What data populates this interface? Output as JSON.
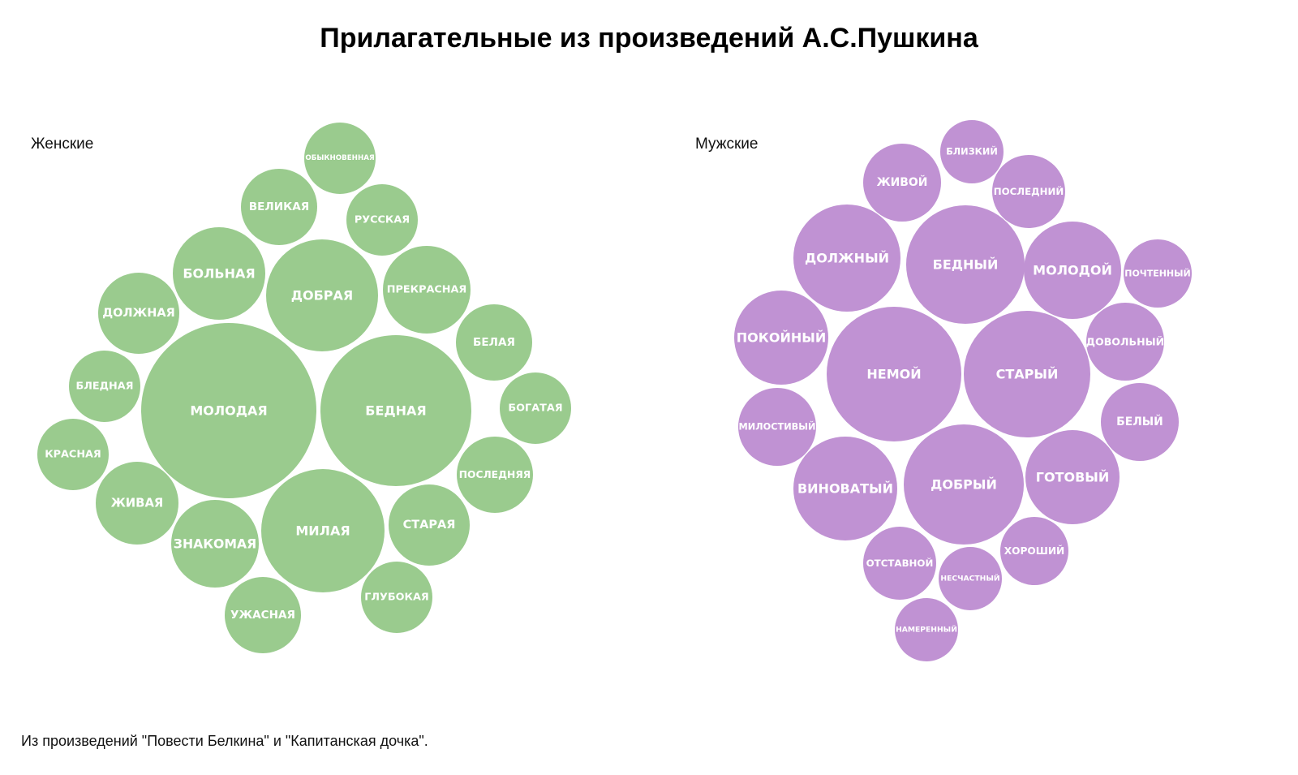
{
  "chart_data": {
    "type": "bubble",
    "title": "Прилагательные из произведений А.С.Пушкина",
    "footnote": "Из произведений \"Повести Белкина\" и \"Капитанская дочка\".",
    "panels": [
      {
        "name": "Женские",
        "color": "#9ACB8E",
        "bubbles": [
          {
            "label": "МОЛОДАЯ",
            "r": 108
          },
          {
            "label": "БЕДНАЯ",
            "r": 93
          },
          {
            "label": "МИЛАЯ",
            "r": 76
          },
          {
            "label": "ДОБРАЯ",
            "r": 69
          },
          {
            "label": "БОЛЬНАЯ",
            "r": 57
          },
          {
            "label": "ЗНАКОМАЯ",
            "r": 54
          },
          {
            "label": "ПРЕКРАСНАЯ",
            "r": 54
          },
          {
            "label": "ЖИВАЯ",
            "r": 51
          },
          {
            "label": "ДОЛЖНАЯ",
            "r": 50
          },
          {
            "label": "СТАРАЯ",
            "r": 50
          },
          {
            "label": "ВЕЛИКАЯ",
            "r": 47
          },
          {
            "label": "ПОСЛЕДНЯЯ",
            "r": 47
          },
          {
            "label": "БЕЛАЯ",
            "r": 47
          },
          {
            "label": "УЖАСНАЯ",
            "r": 47
          },
          {
            "label": "БЛЕДНАЯ",
            "r": 44
          },
          {
            "label": "РУССКАЯ",
            "r": 44
          },
          {
            "label": "БОГАТАЯ",
            "r": 44
          },
          {
            "label": "КРАСНАЯ",
            "r": 44
          },
          {
            "label": "ОБЫКНОВЕННАЯ",
            "r": 44
          },
          {
            "label": "ГЛУБОКАЯ",
            "r": 44
          }
        ]
      },
      {
        "name": "Мужские",
        "color": "#C092D3",
        "bubbles": [
          {
            "label": "НЕМОЙ",
            "r": 83
          },
          {
            "label": "СТАРЫЙ",
            "r": 78
          },
          {
            "label": "ДОБРЫЙ",
            "r": 74
          },
          {
            "label": "БЕДНЫЙ",
            "r": 73
          },
          {
            "label": "ДОЛЖНЫЙ",
            "r": 66
          },
          {
            "label": "ВИНОВАТЫЙ",
            "r": 64
          },
          {
            "label": "МОЛОДОЙ",
            "r": 60
          },
          {
            "label": "ГОТОВЫЙ",
            "r": 58
          },
          {
            "label": "ПОКОЙНЫЙ",
            "r": 58
          },
          {
            "label": "ЖИВОЙ",
            "r": 48
          },
          {
            "label": "БЕЛЫЙ",
            "r": 48
          },
          {
            "label": "ДОВОЛЬНЫЙ",
            "r": 48
          },
          {
            "label": "МИЛОСТИВЫЙ",
            "r": 48
          },
          {
            "label": "ОТСТАВНОЙ",
            "r": 45
          },
          {
            "label": "ПОСЛЕДНИЙ",
            "r": 45
          },
          {
            "label": "ПОЧТЕННЫЙ",
            "r": 42
          },
          {
            "label": "ХОРОШИЙ",
            "r": 42
          },
          {
            "label": "БЛИЗКИЙ",
            "r": 39
          },
          {
            "label": "НЕСЧАСТНЫЙ",
            "r": 39
          },
          {
            "label": "НАМЕРЕННЫЙ",
            "r": 39
          }
        ]
      }
    ]
  }
}
